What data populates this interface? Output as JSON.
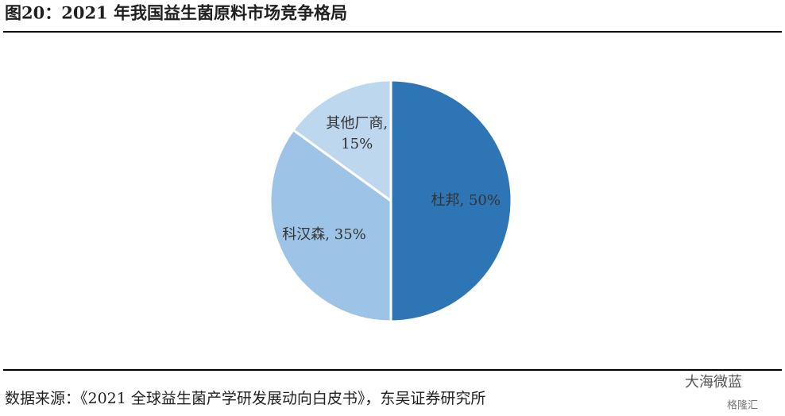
{
  "chart_data": {
    "type": "pie",
    "title": "图20：2021 年我国益生菌原料市场竞争格局",
    "categories": [
      "杜邦",
      "科汉森",
      "其他厂商"
    ],
    "values": [
      50,
      35,
      15
    ],
    "value_labels": [
      "杜邦, 50%",
      "科汉森, 35%",
      "其他厂商, 15%"
    ],
    "colors": [
      "#2e75b6",
      "#9dc3e6",
      "#bdd7ee"
    ],
    "source": "数据来源：《2021 全球益生菌产学研发展动向白皮书》，东吴证券研究所",
    "watermarks": [
      "大海微蓝",
      "格隆汇"
    ]
  }
}
